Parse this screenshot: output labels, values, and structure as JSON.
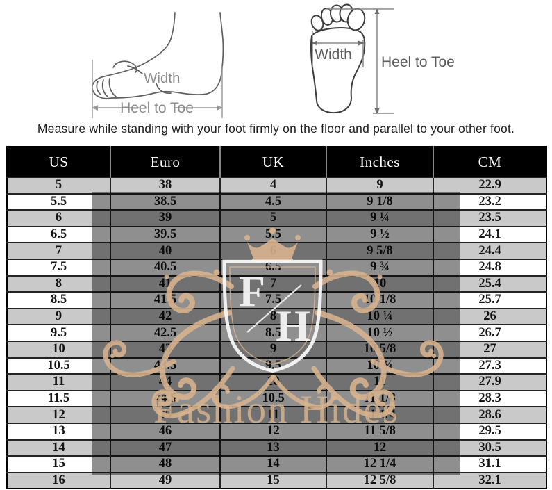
{
  "measure_note": "Measure while standing with your foot firmly on the floor and parallel to your other foot.",
  "diagrams": {
    "side_foot": {
      "width_label": "Width",
      "length_label": "Heel to Toe"
    },
    "sole_foot": {
      "width_label": "Width",
      "length_label": "Heel to Toe"
    }
  },
  "watermark": {
    "monogram_first": "F",
    "monogram_second": "H",
    "brand_text": "Fashion Hides",
    "tan_color": "#d9b48f",
    "shade_color": "rgba(0,0,0,0.44)"
  },
  "size_chart": {
    "columns": [
      "US",
      "Euro",
      "UK",
      "Inches",
      "CM"
    ],
    "rows": [
      [
        "5",
        "38",
        "4",
        "9",
        "22.9"
      ],
      [
        "5.5",
        "38.5",
        "4.5",
        "9 1/8",
        "23.2"
      ],
      [
        "6",
        "39",
        "5",
        "9 ¼",
        "23.5"
      ],
      [
        "6.5",
        "39.5",
        "5.5",
        "9 ½",
        "24.1"
      ],
      [
        "7",
        "40",
        "6",
        "9 5/8",
        "24.4"
      ],
      [
        "7.5",
        "40.5",
        "6.5",
        "9 ¾",
        "24.8"
      ],
      [
        "8",
        "41",
        "7",
        "10",
        "25.4"
      ],
      [
        "8.5",
        "41.5",
        "7.5",
        "10 1/8",
        "25.7"
      ],
      [
        "9",
        "42",
        "8",
        "10 ¼",
        "26"
      ],
      [
        "9.5",
        "42.5",
        "8.5",
        "10 ½",
        "26.7"
      ],
      [
        "10",
        "43",
        "9",
        "10 5/8",
        "27"
      ],
      [
        "10.5",
        "43.5",
        "9.5",
        "10 ¾",
        "27.3"
      ],
      [
        "11",
        "44",
        "10",
        "11",
        "27.9"
      ],
      [
        "11.5",
        "44.5",
        "10.5",
        "11 1/8",
        "28.3"
      ],
      [
        "12",
        "45",
        "11",
        "11 1/4",
        "28.6"
      ],
      [
        "13",
        "46",
        "12",
        "11 5/8",
        "29.5"
      ],
      [
        "14",
        "47",
        "13",
        "12",
        "30.5"
      ],
      [
        "15",
        "48",
        "14",
        "12 1/4",
        "31.1"
      ],
      [
        "16",
        "49",
        "15",
        "12 5/8",
        "32.1"
      ]
    ]
  },
  "colors": {
    "header_bg": "#000000",
    "header_text": "#ffffff",
    "row_light": "#c9c9c9",
    "row_white": "#ffffff",
    "grid_line": "#242424",
    "cell_text": "#141414"
  }
}
